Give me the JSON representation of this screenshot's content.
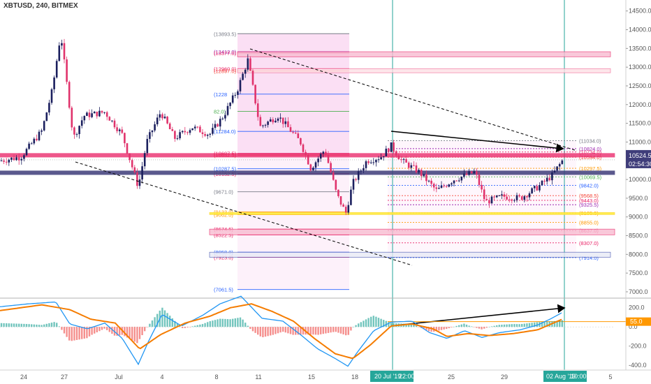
{
  "header": {
    "symbol_label": "XBTUSD, 240, BITMEX"
  },
  "colors": {
    "up": "#1b1f5e",
    "down": "#e0336c",
    "macd": "#2196f3",
    "signal": "#f57c00",
    "hist_up": "#26a69a",
    "hist_down": "#ef5350",
    "teal": "#26a69a",
    "fib_zone": "#ee66cc",
    "orange": "#ff9800",
    "red_box": "#e91e63"
  },
  "chart_data": {
    "type": "candlestick",
    "price_axis": {
      "range": [
        6850,
        14700
      ],
      "ticks": [
        "14500.0",
        "14000.0",
        "13500.0",
        "13000.0",
        "12500.0",
        "12000.0",
        "11500.0",
        "11000.0",
        "10500.0",
        "10000.0",
        "9500.0",
        "9000.0",
        "8500.0",
        "8000.0",
        "7500.0",
        "7000.0"
      ],
      "current_price": "10524.5",
      "countdown": "02:54:30"
    },
    "time_axis": {
      "labels": [
        "24",
        "27",
        "Jul",
        "4",
        "8",
        "11",
        "15",
        "18",
        "22",
        "25",
        "29",
        "5"
      ],
      "highlight_labels": [
        "20 Jul '19",
        "22:00",
        "02 Aug '19",
        "10:00"
      ]
    },
    "price_anchors": [
      {
        "x": 0,
        "y": 10500
      },
      {
        "x": 30,
        "y": 10600
      },
      {
        "x": 60,
        "y": 11300
      },
      {
        "x": 75,
        "y": 12400
      },
      {
        "x": 87,
        "y": 13900
      },
      {
        "x": 105,
        "y": 11100
      },
      {
        "x": 120,
        "y": 11700
      },
      {
        "x": 150,
        "y": 11800
      },
      {
        "x": 175,
        "y": 11200
      },
      {
        "x": 198,
        "y": 9800
      },
      {
        "x": 210,
        "y": 11000
      },
      {
        "x": 230,
        "y": 11800
      },
      {
        "x": 250,
        "y": 11100
      },
      {
        "x": 275,
        "y": 11400
      },
      {
        "x": 300,
        "y": 11200
      },
      {
        "x": 320,
        "y": 11700
      },
      {
        "x": 340,
        "y": 12400
      },
      {
        "x": 355,
        "y": 13200
      },
      {
        "x": 372,
        "y": 11400
      },
      {
        "x": 398,
        "y": 11700
      },
      {
        "x": 430,
        "y": 11000
      },
      {
        "x": 445,
        "y": 10300
      },
      {
        "x": 465,
        "y": 10800
      },
      {
        "x": 482,
        "y": 9600
      },
      {
        "x": 495,
        "y": 9100
      },
      {
        "x": 505,
        "y": 9900
      },
      {
        "x": 525,
        "y": 10500
      },
      {
        "x": 545,
        "y": 10600
      },
      {
        "x": 560,
        "y": 10900
      },
      {
        "x": 575,
        "y": 10500
      },
      {
        "x": 600,
        "y": 10200
      },
      {
        "x": 625,
        "y": 9700
      },
      {
        "x": 650,
        "y": 10000
      },
      {
        "x": 680,
        "y": 10200
      },
      {
        "x": 695,
        "y": 9400
      },
      {
        "x": 720,
        "y": 9550
      },
      {
        "x": 745,
        "y": 9500
      },
      {
        "x": 770,
        "y": 9800
      },
      {
        "x": 790,
        "y": 10100
      },
      {
        "x": 805,
        "y": 10500
      }
    ],
    "levels_left": [
      {
        "label": "(13893.5)",
        "value": 13893.5,
        "color": "#787b86"
      },
      {
        "label": "(13412.0)",
        "value": 13412,
        "color": "#9c27b0"
      },
      {
        "label": "(13377.0)",
        "value": 13377,
        "color": "#e91e63"
      },
      {
        "label": "(12960.0)",
        "value": 12960,
        "color": "#e91e63"
      },
      {
        "label": "(12897.0)",
        "value": 12897,
        "color": "#f44336"
      },
      {
        "label": "(1228",
        "value": 12280,
        "color": "#2962ff"
      },
      {
        "label": "82.0)",
        "value": 11820,
        "color": "#4caf50"
      },
      {
        "label": "(11284.0)",
        "value": 11284,
        "color": "#2962ff"
      },
      {
        "label": "(10697.5)",
        "value": 10697.5,
        "color": "#e91e63"
      },
      {
        "label": "(10652.5)",
        "value": 10652.5,
        "color": "#f44336"
      },
      {
        "label": "(10287.5)",
        "value": 10287.5,
        "color": "#2962ff"
      },
      {
        "label": "(10152.5)",
        "value": 10152.5,
        "color": "#e91e63"
      },
      {
        "label": "(9671.0)",
        "value": 9671,
        "color": "#787b86"
      },
      {
        "label": "(9133.0)",
        "value": 9133,
        "color": "#ff9800"
      },
      {
        "label": "(9062.0)",
        "value": 9062,
        "color": "#ff9800"
      },
      {
        "label": "(8674.5)",
        "value": 8674.5,
        "color": "#e91e63"
      },
      {
        "label": "(8522.5)",
        "value": 8522.5,
        "color": "#e91e63"
      },
      {
        "label": "(8058.0)",
        "value": 8058,
        "color": "#2962ff"
      },
      {
        "label": "(7923.0)",
        "value": 7923,
        "color": "#e91e63"
      },
      {
        "label": "(7061.5)",
        "value": 7061.5,
        "color": "#2962ff"
      }
    ],
    "levels_right": [
      {
        "label": "(11034.0)",
        "value": 11034,
        "color": "#787b86"
      },
      {
        "label": "(10824.0)",
        "value": 10824,
        "color": "#9c27b0"
      },
      {
        "label": "(10734.0)",
        "value": 10734,
        "color": "#e91e63"
      },
      {
        "label": "(10594.0)",
        "value": 10594,
        "color": "#f44336"
      },
      {
        "label": "(10297.5)",
        "value": 10297.5,
        "color": "#ff9800"
      },
      {
        "label": "(10069.5)",
        "value": 10069.5,
        "color": "#4caf50"
      },
      {
        "label": "(9842.0)",
        "value": 9842,
        "color": "#2962ff"
      },
      {
        "label": "(9568.5)",
        "value": 9568.5,
        "color": "#f44336"
      },
      {
        "label": "(9443.0)",
        "value": 9443,
        "color": "#e91e63"
      },
      {
        "label": "(9325.5)",
        "value": 9325.5,
        "color": "#9c27b0"
      },
      {
        "label": "(9105.5)",
        "value": 9105.5,
        "color": "#ff9800"
      },
      {
        "label": "(8855.0)",
        "value": 8855,
        "color": "#ff9800"
      },
      {
        "label": "(8637.0)",
        "value": 8637,
        "color": "#e91e63"
      },
      {
        "label": "(8307.0)",
        "value": 8307,
        "color": "#e91e63"
      },
      {
        "label": "(7914.0)",
        "value": 7914,
        "color": "#2962ff"
      }
    ],
    "macd": {
      "range": [
        -450,
        300
      ],
      "ticks": [
        "200.0",
        "0.0",
        "-200.0",
        "-400.0"
      ],
      "signal_label": "55.0",
      "macd_anchors": [
        {
          "x": 0,
          "y": 210
        },
        {
          "x": 40,
          "y": 240
        },
        {
          "x": 80,
          "y": 260
        },
        {
          "x": 100,
          "y": 30
        },
        {
          "x": 125,
          "y": -20
        },
        {
          "x": 150,
          "y": 40
        },
        {
          "x": 175,
          "y": -120
        },
        {
          "x": 198,
          "y": -390
        },
        {
          "x": 212,
          "y": -160
        },
        {
          "x": 232,
          "y": 130
        },
        {
          "x": 260,
          "y": 10
        },
        {
          "x": 290,
          "y": 120
        },
        {
          "x": 315,
          "y": 240
        },
        {
          "x": 345,
          "y": 320
        },
        {
          "x": 375,
          "y": 90
        },
        {
          "x": 405,
          "y": 60
        },
        {
          "x": 430,
          "y": -80
        },
        {
          "x": 455,
          "y": -230
        },
        {
          "x": 480,
          "y": -330
        },
        {
          "x": 498,
          "y": -410
        },
        {
          "x": 512,
          "y": -260
        },
        {
          "x": 535,
          "y": -40
        },
        {
          "x": 560,
          "y": 50
        },
        {
          "x": 590,
          "y": 60
        },
        {
          "x": 615,
          "y": -60
        },
        {
          "x": 640,
          "y": -120
        },
        {
          "x": 665,
          "y": -40
        },
        {
          "x": 690,
          "y": -110
        },
        {
          "x": 715,
          "y": -60
        },
        {
          "x": 745,
          "y": -30
        },
        {
          "x": 770,
          "y": 20
        },
        {
          "x": 790,
          "y": 90
        },
        {
          "x": 805,
          "y": 150
        }
      ],
      "signal_anchors": [
        {
          "x": 0,
          "y": 170
        },
        {
          "x": 60,
          "y": 230
        },
        {
          "x": 100,
          "y": 180
        },
        {
          "x": 130,
          "y": 80
        },
        {
          "x": 165,
          "y": 40
        },
        {
          "x": 200,
          "y": -230
        },
        {
          "x": 230,
          "y": -80
        },
        {
          "x": 265,
          "y": 40
        },
        {
          "x": 300,
          "y": 110
        },
        {
          "x": 330,
          "y": 200
        },
        {
          "x": 360,
          "y": 240
        },
        {
          "x": 390,
          "y": 160
        },
        {
          "x": 420,
          "y": 60
        },
        {
          "x": 450,
          "y": -120
        },
        {
          "x": 480,
          "y": -280
        },
        {
          "x": 505,
          "y": -330
        },
        {
          "x": 530,
          "y": -190
        },
        {
          "x": 560,
          "y": 10
        },
        {
          "x": 590,
          "y": 30
        },
        {
          "x": 620,
          "y": -20
        },
        {
          "x": 640,
          "y": -100
        },
        {
          "x": 670,
          "y": -70
        },
        {
          "x": 700,
          "y": -90
        },
        {
          "x": 735,
          "y": -70
        },
        {
          "x": 770,
          "y": -30
        },
        {
          "x": 805,
          "y": 80
        }
      ]
    }
  }
}
